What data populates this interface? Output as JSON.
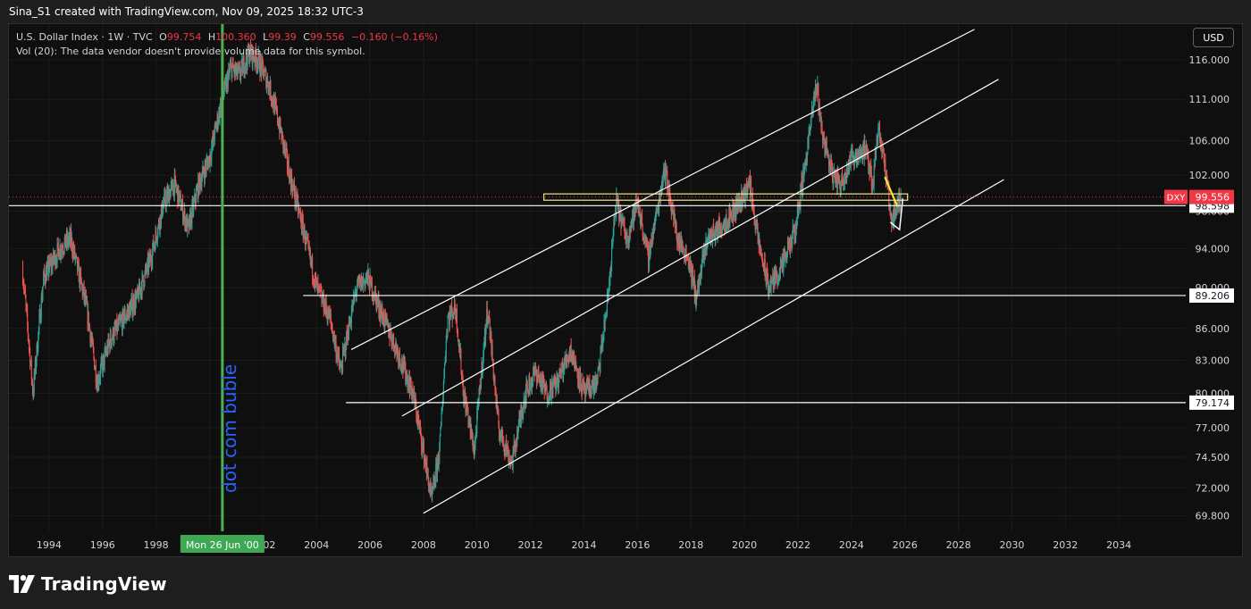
{
  "header": {
    "credit": "Sina_S1 created with TradingView.com, Nov 09, 2025 18:32 UTC-3"
  },
  "legend": {
    "symbol": "U.S. Dollar Index · 1W · TVC",
    "o_label": "O",
    "o_value": "99.754",
    "h_label": "H",
    "h_value": "100.360",
    "l_label": "L",
    "l_value": "99.39",
    "c_label": "C",
    "c_value": "99.556",
    "change": "−0.160 (−0.16%)",
    "volume_note": "Vol (20): The data vendor doesn't provide volume data for this symbol."
  },
  "currency_button": "USD",
  "brand": {
    "name": "TradingView"
  },
  "colors": {
    "up": "#26a69a",
    "down": "#ef5350",
    "price_line": "#f23645",
    "crosshair": "#4caf50",
    "annotation": "#2962ff",
    "zone": "#f0e68c"
  },
  "chart_data": {
    "type": "line",
    "symbol": "DXY",
    "x_axis": {
      "range": [
        1992.5,
        2036.5
      ],
      "tick_labels": [
        "1994",
        "1996",
        "1998",
        "2000",
        "2002",
        "2004",
        "2006",
        "2008",
        "2010",
        "2012",
        "2014",
        "2016",
        "2018",
        "2020",
        "2022",
        "2024",
        "2026",
        "2028",
        "2030",
        "2032",
        "2034"
      ]
    },
    "y_axis": {
      "scale": "log",
      "range": [
        68.6,
        120.7
      ],
      "tick_labels": [
        "116.000",
        "111.000",
        "106.000",
        "102.000",
        "98.000",
        "94.000",
        "90.000",
        "86.000",
        "83.000",
        "80.000",
        "77.000",
        "74.500",
        "72.000",
        "69.800"
      ]
    },
    "price_path": [
      [
        1993.0,
        92
      ],
      [
        1993.4,
        80
      ],
      [
        1993.8,
        91
      ],
      [
        1994.4,
        94
      ],
      [
        1994.8,
        95
      ],
      [
        1995.4,
        88
      ],
      [
        1995.8,
        81
      ],
      [
        1996.3,
        85
      ],
      [
        1996.8,
        87
      ],
      [
        1997.3,
        89
      ],
      [
        1997.8,
        93
      ],
      [
        1998.3,
        99
      ],
      [
        1998.7,
        101
      ],
      [
        1999.2,
        96
      ],
      [
        1999.6,
        101
      ],
      [
        2000.0,
        104
      ],
      [
        2000.4,
        110
      ],
      [
        2000.8,
        115
      ],
      [
        2001.1,
        114
      ],
      [
        2001.5,
        117
      ],
      [
        2001.8,
        116
      ],
      [
        2002.2,
        113
      ],
      [
        2002.6,
        108
      ],
      [
        2003.0,
        102
      ],
      [
        2003.5,
        96
      ],
      [
        2004.0,
        90
      ],
      [
        2004.5,
        87
      ],
      [
        2004.9,
        82
      ],
      [
        2005.5,
        90
      ],
      [
        2005.9,
        91
      ],
      [
        2006.5,
        87
      ],
      [
        2007.0,
        84
      ],
      [
        2007.6,
        80
      ],
      [
        2008.0,
        75
      ],
      [
        2008.3,
        71
      ],
      [
        2008.6,
        75
      ],
      [
        2008.9,
        87
      ],
      [
        2009.2,
        88
      ],
      [
        2009.5,
        80
      ],
      [
        2009.9,
        75
      ],
      [
        2010.4,
        88
      ],
      [
        2010.8,
        77
      ],
      [
        2011.3,
        74
      ],
      [
        2011.8,
        80
      ],
      [
        2012.2,
        82
      ],
      [
        2012.6,
        80
      ],
      [
        2013.0,
        81
      ],
      [
        2013.5,
        84
      ],
      [
        2014.0,
        80
      ],
      [
        2014.5,
        81
      ],
      [
        2014.9,
        89
      ],
      [
        2015.2,
        99
      ],
      [
        2015.6,
        95
      ],
      [
        2016.0,
        99
      ],
      [
        2016.4,
        93
      ],
      [
        2016.8,
        99
      ],
      [
        2017.0,
        103
      ],
      [
        2017.5,
        95
      ],
      [
        2017.9,
        93
      ],
      [
        2018.2,
        89
      ],
      [
        2018.6,
        95
      ],
      [
        2019.0,
        96
      ],
      [
        2019.6,
        98
      ],
      [
        2020.2,
        101
      ],
      [
        2020.5,
        95
      ],
      [
        2020.9,
        90
      ],
      [
        2021.4,
        92
      ],
      [
        2021.9,
        96
      ],
      [
        2022.3,
        104
      ],
      [
        2022.7,
        113
      ],
      [
        2022.9,
        107
      ],
      [
        2023.3,
        102
      ],
      [
        2023.6,
        101
      ],
      [
        2024.0,
        104
      ],
      [
        2024.5,
        105
      ],
      [
        2024.8,
        101
      ],
      [
        2025.0,
        108
      ],
      [
        2025.2,
        104
      ],
      [
        2025.5,
        97
      ],
      [
        2025.85,
        99.556
      ]
    ],
    "horizontal_levels": [
      {
        "value": 98.598,
        "label": "98.598"
      },
      {
        "value": 89.206,
        "label": "89.206"
      },
      {
        "value": 79.174,
        "label": "79.174"
      }
    ],
    "last_price": {
      "symbol": "DXY",
      "value": 99.556,
      "label": "99.556"
    },
    "channel_lines": [
      {
        "from": [
          2005.3,
          84.0
        ],
        "to": [
          2028.6,
          120.0
        ]
      },
      {
        "from": [
          2007.2,
          78.0
        ],
        "to": [
          2029.5,
          113.5
        ]
      },
      {
        "from": [
          2008.0,
          70.0
        ],
        "to": [
          2029.7,
          101.5
        ]
      }
    ],
    "zone": {
      "from_x": 2012.5,
      "to_x": 2026.1,
      "low": 99.2,
      "high": 99.9
    },
    "crosshair": {
      "x": 2000.48,
      "label": "Mon 26 Jun '00"
    },
    "annotation": {
      "text": "dot com buble",
      "x": 2000.55,
      "y": 71.6
    }
  }
}
